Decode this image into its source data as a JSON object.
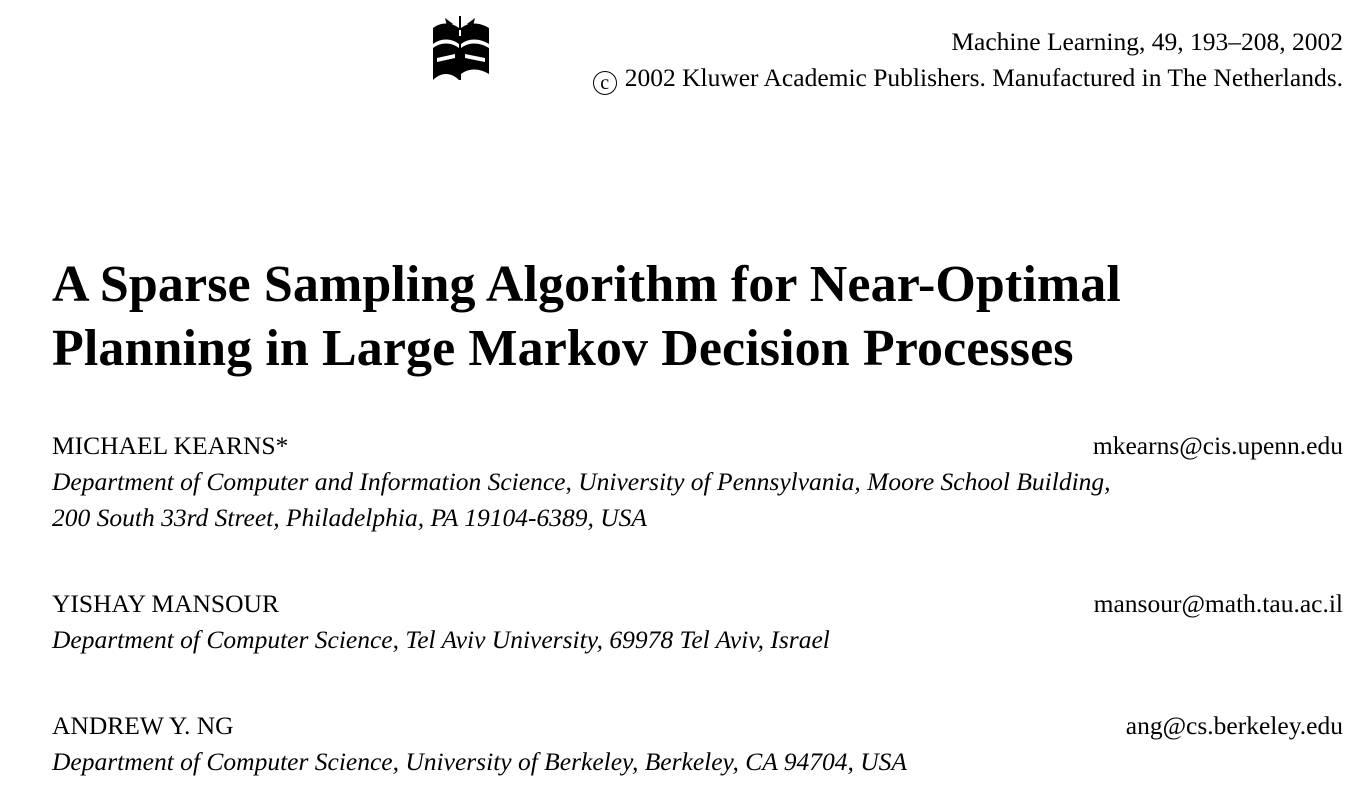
{
  "header": {
    "journal_citation": "Machine Learning, 49, 193–208, 2002",
    "copyright_symbol": "c",
    "publisher_line": "2002 Kluwer Academic Publishers. Manufactured in The Netherlands.",
    "logo_icon": "kluwer-publisher-logo"
  },
  "paper": {
    "title_line1": "A Sparse Sampling Algorithm for Near-Optimal",
    "title_line2": "Planning in Large Markov Decision Processes"
  },
  "authors": [
    {
      "name": "MICHAEL KEARNS*",
      "email": "mkearns@cis.upenn.edu",
      "affiliation_line1": "Department of Computer and Information Science, University of Pennsylvania, Moore School Building,",
      "affiliation_line2": "200 South 33rd Street, Philadelphia, PA 19104-6389, USA"
    },
    {
      "name": "YISHAY MANSOUR",
      "email": "mansour@math.tau.ac.il",
      "affiliation_line1": "Department of Computer Science, Tel Aviv University, 69978 Tel Aviv, Israel"
    },
    {
      "name": "ANDREW Y. NG",
      "email": "ang@cs.berkeley.edu",
      "affiliation_line1": "Department of Computer Science, University of Berkeley, Berkeley, CA 94704, USA"
    }
  ]
}
